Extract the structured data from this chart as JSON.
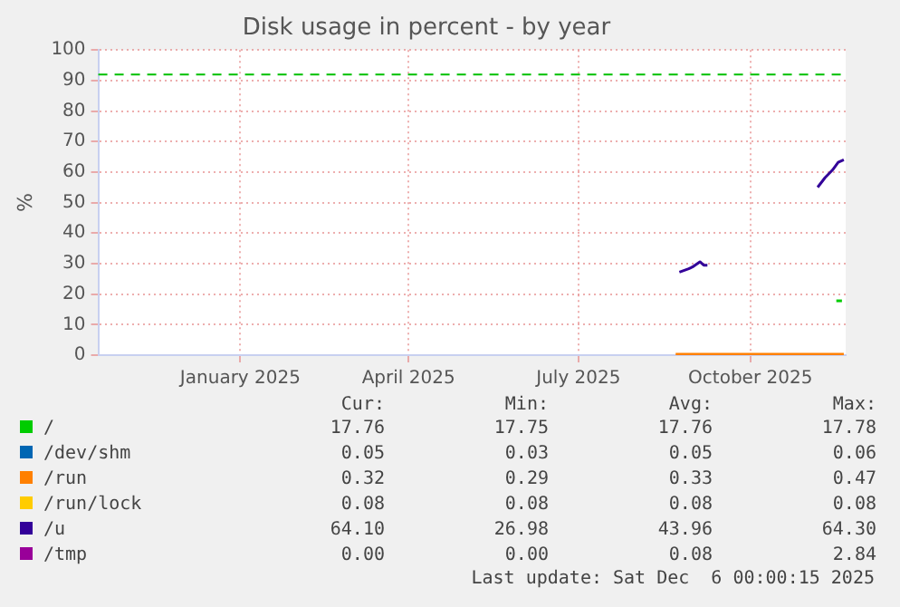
{
  "chart_data": {
    "type": "line",
    "title": "Disk usage in percent - by year",
    "ylabel": "%",
    "xlim": [
      "2024-10-17",
      "2025-11-21"
    ],
    "ylim": [
      0,
      100
    ],
    "xticks": [
      {
        "value": "2025-01-01",
        "label": "January 2025"
      },
      {
        "value": "2025-04-01",
        "label": "April 2025"
      },
      {
        "value": "2025-07-01",
        "label": "July 2025"
      },
      {
        "value": "2025-10-01",
        "label": "October 2025"
      }
    ],
    "yticks": [
      0,
      10,
      20,
      30,
      40,
      50,
      60,
      70,
      80,
      90,
      100
    ],
    "grid": true,
    "legend": "bottom",
    "marker": "none",
    "line_style": "solid",
    "ref_lines": [
      {
        "axis": "y",
        "value": 92,
        "color": "#00c000",
        "line_style": "dashed"
      }
    ],
    "series": [
      {
        "name": "/",
        "color": "#00cc00",
        "x": [
          "2025-11-16",
          "2025-11-19"
        ],
        "values": [
          17.8,
          17.8
        ]
      },
      {
        "name": "/dev/shm",
        "color": "#0066b3"
      },
      {
        "name": "/run",
        "color": "#ff8000",
        "x": [
          "2025-08-22",
          "2025-11-20"
        ],
        "values": [
          0.3,
          0.3
        ]
      },
      {
        "name": "/run/lock",
        "color": "#ffcc00"
      },
      {
        "name": "/u",
        "color": "#330099",
        "x": [
          "2025-08-24",
          "2025-08-29",
          "2025-08-31",
          "2025-09-04",
          "2025-09-06",
          "2025-09-08",
          "2025-09-09",
          "2025-11-06",
          "2025-11-10",
          "2025-11-14",
          "2025-11-17",
          "2025-11-20"
        ],
        "values": [
          27.2,
          28.3,
          28.9,
          30.6,
          29.5,
          29.5,
          null,
          55,
          58.2,
          60.7,
          63.2,
          64
        ]
      },
      {
        "name": "/tmp",
        "color": "#990099"
      }
    ],
    "annotations": [
      "Cur:",
      "Min:",
      "Avg:",
      "Max:",
      "17.76",
      "17.75",
      "17.76",
      "17.78",
      "0.05",
      "0.03",
      "0.05",
      "0.06",
      "0.32",
      "0.29",
      "0.33",
      "0.47",
      "0.08",
      "0.08",
      "0.08",
      "0.08",
      "64.10",
      "26.98",
      "43.96",
      "64.30",
      "0.00",
      "0.00",
      "0.08",
      "2.84",
      "Last update: Sat Dec  6 00:00:15 2025"
    ]
  }
}
